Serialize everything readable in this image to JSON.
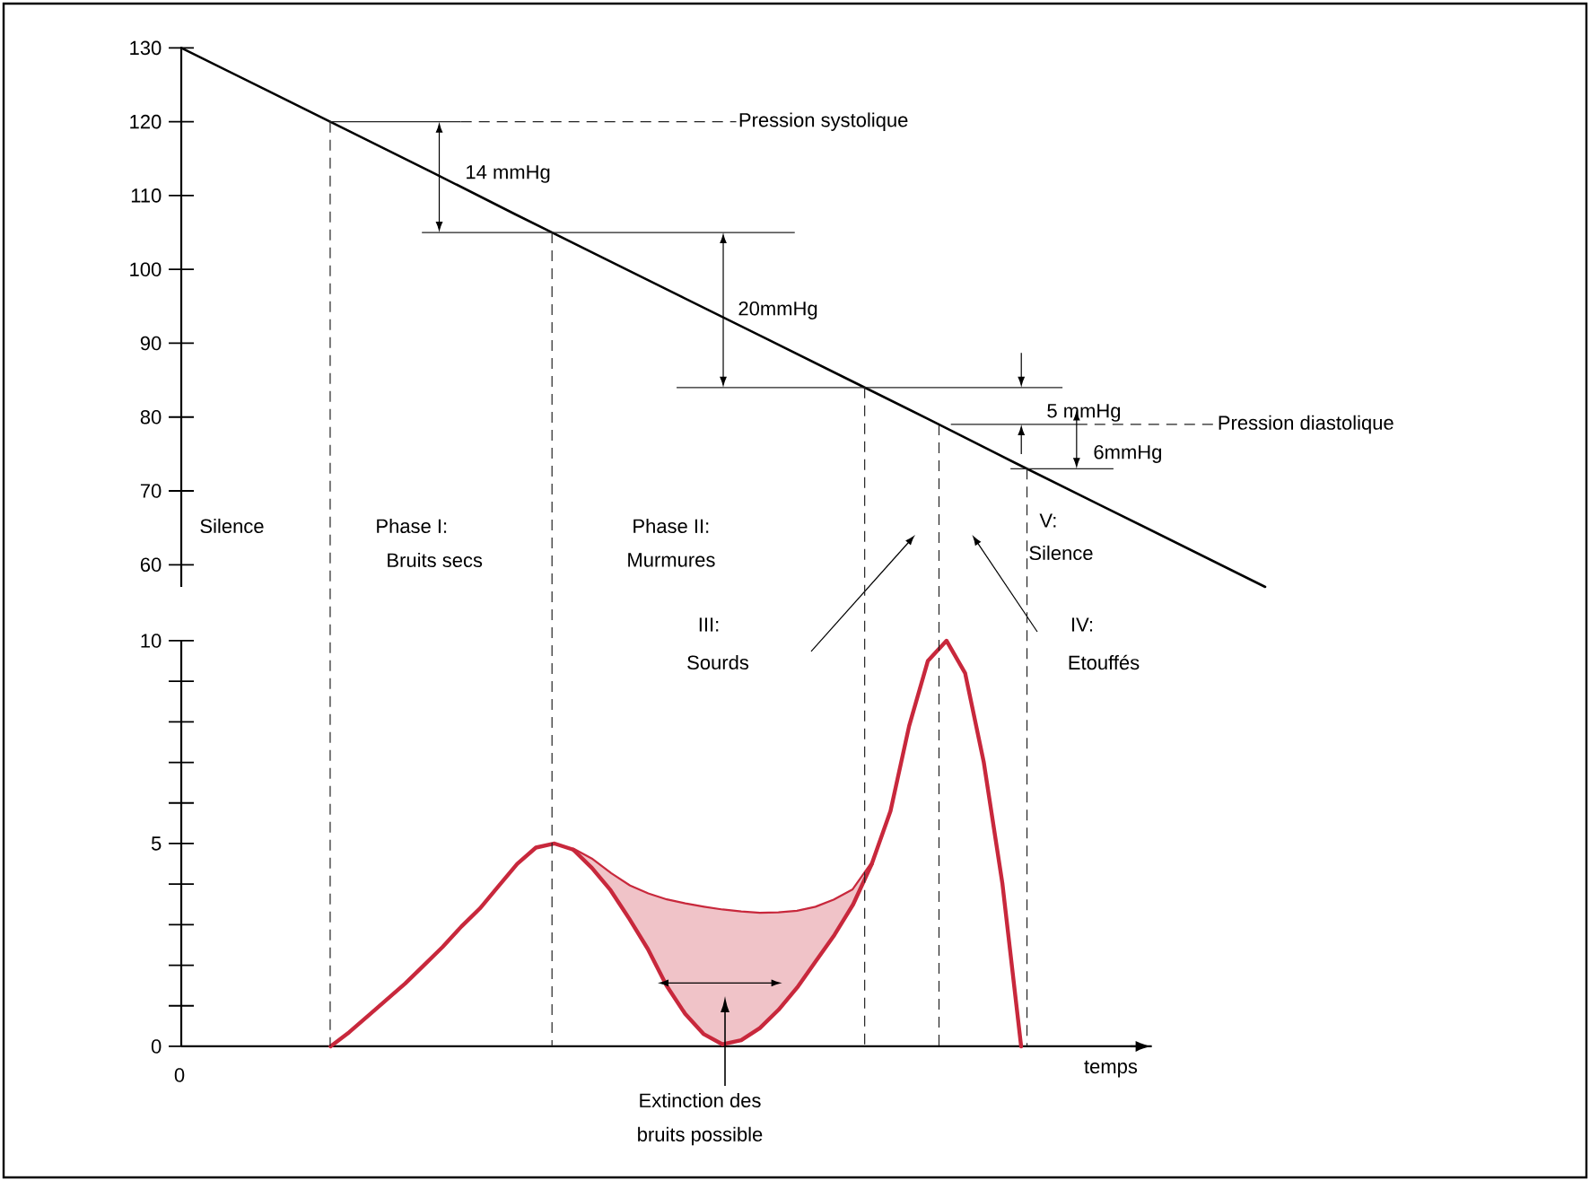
{
  "chart_data": [
    {
      "type": "line",
      "categories": [
        null,
        null,
        null,
        null,
        null,
        null,
        null,
        null,
        null,
        null,
        null,
        null,
        null,
        null
      ],
      "ylim": [
        57,
        130
      ],
      "yticks": [
        60,
        70,
        80,
        90,
        100,
        110,
        120,
        130
      ],
      "tick_labels": "y",
      "series": [
        {
          "color": "#000000",
          "line_style": "solid",
          "values": [
            130,
            124.4,
            118.8,
            113.2,
            107.5,
            101.9,
            96.3,
            90.7,
            85.1,
            79.5,
            73.8,
            68.2,
            62.6,
            57
          ]
        }
      ],
      "ref_lines": [
        {
          "axis": "y",
          "value": 120,
          "line_style": "solid",
          "color": "#222222"
        },
        {
          "axis": "y",
          "value": 120,
          "line_style": "dashed",
          "color": "#222222",
          "label": "Pression systolique"
        },
        {
          "axis": "y",
          "value": 105,
          "line_style": "solid",
          "color": "#222222"
        },
        {
          "axis": "y",
          "value": 84,
          "line_style": "solid",
          "color": "#222222"
        },
        {
          "axis": "y",
          "value": 79,
          "line_style": "solid",
          "color": "#222222"
        },
        {
          "axis": "y",
          "value": 79,
          "line_style": "dashed",
          "color": "#222222",
          "label": "Pression diastolique"
        },
        {
          "axis": "y",
          "value": 73,
          "line_style": "solid",
          "color": "#222222"
        }
      ],
      "annotations": [
        "14 mmHg",
        "20mmHg",
        "5 mmHg",
        "6mmHg",
        "Silence",
        "Phase I:",
        "Bruits secs",
        "Phase II:",
        "Murmures",
        "V:",
        "Silence"
      ]
    },
    {
      "type": "line",
      "categories": [
        null,
        null,
        null,
        null,
        null,
        null,
        null,
        null,
        null,
        null,
        null,
        null,
        null,
        null,
        null,
        null,
        null,
        null,
        null,
        null,
        null,
        null,
        null,
        null,
        null,
        null,
        null,
        null,
        null,
        null,
        null,
        null,
        null,
        null,
        null,
        null,
        null,
        null,
        null,
        null,
        null,
        null,
        null,
        null,
        null,
        null,
        null,
        null,
        null,
        null,
        null,
        null
      ],
      "ylim": [
        0,
        10
      ],
      "xlabel": "temps",
      "tick_labels": "y",
      "yticks": [
        0,
        {
          "value": 1,
          "label": null
        },
        {
          "value": 2,
          "label": null
        },
        {
          "value": 3,
          "label": null
        },
        {
          "value": 4,
          "label": null
        },
        5,
        {
          "value": 6,
          "label": null
        },
        {
          "value": 7,
          "label": null
        },
        {
          "value": 8,
          "label": null
        },
        {
          "value": 9,
          "label": null
        },
        10
      ],
      "series": [
        {
          "color": "#c8283c",
          "line_style": "solid",
          "values": [
            null,
            null,
            null,
            null,
            null,
            null,
            null,
            null,
            0,
            0.35,
            0.75,
            1.15,
            1.55,
            2.0,
            2.45,
            2.95,
            3.4,
            3.95,
            4.5,
            4.9,
            5.0,
            4.85,
            4.6,
            4.25,
            3.95,
            3.75,
            3.6,
            3.5,
            3.42,
            3.35,
            3.3,
            3.27,
            3.28,
            3.32,
            3.42,
            3.6,
            3.85,
            4.5,
            5.8,
            7.9,
            9.5,
            10,
            9.2,
            7.0,
            4.0,
            0,
            null,
            null,
            null,
            null,
            null,
            null
          ]
        },
        {
          "color": "#c8283c",
          "line_style": "solid",
          "values": [
            null,
            null,
            null,
            null,
            null,
            null,
            null,
            null,
            null,
            null,
            null,
            null,
            null,
            null,
            null,
            null,
            null,
            null,
            null,
            null,
            null,
            4.85,
            4.4,
            3.85,
            3.15,
            2.4,
            1.5,
            0.8,
            0.3,
            0.05,
            0.15,
            0.45,
            0.9,
            1.45,
            2.1,
            2.75,
            3.5,
            4.5,
            null,
            null,
            null,
            null,
            null,
            null,
            null,
            null,
            null,
            null,
            null,
            null,
            null,
            null
          ],
          "lower": [
            null,
            null,
            null,
            null,
            null,
            null,
            null,
            null,
            null,
            null,
            null,
            null,
            null,
            null,
            null,
            null,
            null,
            null,
            null,
            null,
            null,
            4.85,
            4.4,
            3.85,
            3.15,
            2.4,
            1.5,
            0.8,
            0.3,
            0.05,
            0.15,
            0.45,
            0.9,
            1.45,
            2.1,
            2.75,
            3.5,
            4.5,
            null,
            null,
            null,
            null,
            null,
            null,
            null,
            null,
            null,
            null,
            null,
            null,
            null,
            null
          ],
          "upper": [
            null,
            null,
            null,
            null,
            null,
            null,
            null,
            null,
            null,
            null,
            null,
            null,
            null,
            null,
            null,
            null,
            null,
            null,
            null,
            null,
            null,
            4.85,
            4.6,
            4.25,
            3.95,
            3.75,
            3.6,
            3.5,
            3.42,
            3.35,
            3.3,
            3.27,
            3.28,
            3.32,
            3.42,
            3.6,
            3.85,
            4.5,
            null,
            null,
            null,
            null,
            null,
            null,
            null,
            null,
            null,
            null,
            null,
            null,
            null,
            null
          ]
        }
      ],
      "annotations": [
        "III:",
        "Sourds",
        "IV:",
        "Etouffés",
        "Extinction des",
        "bruits possible",
        "0"
      ]
    }
  ]
}
